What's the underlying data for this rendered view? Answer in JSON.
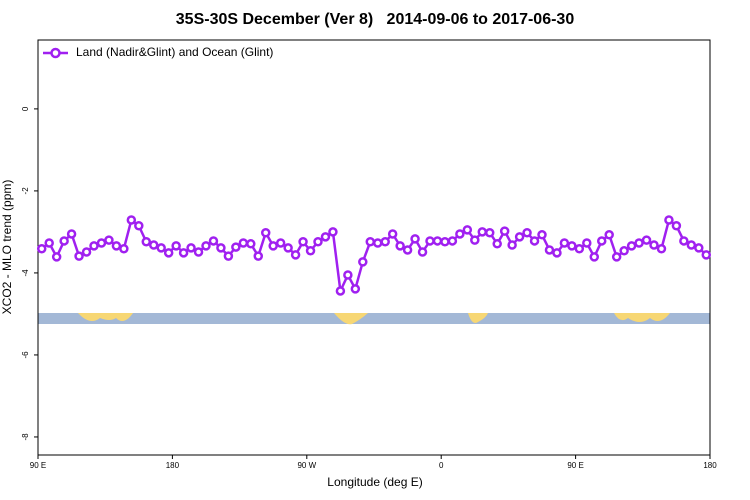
{
  "chart_data": {
    "type": "line",
    "title": "35S-30S December (Ver 8)   2014-09-06 to 2017-06-30",
    "x_label": "Longitude (deg E)",
    "y_label": "XCO2 - MLO trend (ppm)",
    "xlim": [
      90,
      540
    ],
    "ylim": [
      -8.44,
      1.68
    ],
    "xticks": [
      {
        "value": 90,
        "label": "90 E"
      },
      {
        "value": 180,
        "label": "180"
      },
      {
        "value": 270,
        "label": "90 W"
      },
      {
        "value": 360,
        "label": "0"
      },
      {
        "value": 450,
        "label": "90 E"
      },
      {
        "value": 540,
        "label": "180"
      }
    ],
    "yticks": [
      0,
      -2,
      -4,
      -6,
      -8
    ],
    "legend": "top-left",
    "series": [
      {
        "name": "Land (Nadir&Glint) and Ocean (Glint)",
        "color": "#a020f0",
        "x": [
          92.5,
          97.5,
          102.5,
          107.5,
          112.5,
          117.5,
          122.5,
          127.5,
          132.5,
          137.5,
          142.5,
          147.5,
          152.5,
          157.5,
          162.5,
          167.5,
          172.5,
          177.5,
          182.5,
          187.5,
          192.5,
          197.5,
          202.5,
          207.5,
          212.5,
          217.5,
          222.5,
          227.5,
          232.5,
          237.5,
          242.5,
          247.5,
          252.5,
          257.5,
          262.5,
          267.5,
          272.5,
          277.5,
          282.5,
          287.5,
          292.5,
          297.5,
          302.5,
          307.5,
          312.5,
          317.5,
          322.5,
          327.5,
          332.5,
          337.5,
          342.5,
          347.5,
          352.5,
          357.5,
          362.5,
          367.5,
          372.5,
          377.5,
          382.5,
          387.5,
          392.5,
          397.5,
          402.5,
          407.5,
          412.5,
          417.5,
          422.5,
          427.5,
          432.5,
          437.5,
          442.5,
          447.5,
          452.5,
          457.5,
          462.5,
          467.5,
          472.5,
          477.5,
          482.5,
          487.5,
          492.5,
          497.5,
          502.5,
          507.5,
          512.5,
          517.5,
          522.5,
          527.5,
          532.5,
          537.5
        ],
        "values": [
          -3.41,
          -3.27,
          -3.61,
          -3.22,
          -3.05,
          -3.59,
          -3.49,
          -3.34,
          -3.27,
          -3.2,
          -3.34,
          -3.41,
          -2.71,
          -2.85,
          -3.24,
          -3.32,
          -3.39,
          -3.51,
          -3.34,
          -3.51,
          -3.39,
          -3.49,
          -3.34,
          -3.22,
          -3.39,
          -3.59,
          -3.37,
          -3.27,
          -3.29,
          -3.59,
          -3.02,
          -3.34,
          -3.27,
          -3.39,
          -3.56,
          -3.24,
          -3.46,
          -3.24,
          -3.12,
          -3.0,
          -4.44,
          -4.05,
          -4.39,
          -3.73,
          -3.24,
          -3.27,
          -3.24,
          -3.05,
          -3.34,
          -3.44,
          -3.17,
          -3.49,
          -3.22,
          -3.22,
          -3.24,
          -3.22,
          -3.05,
          -2.95,
          -3.2,
          -3.0,
          -3.02,
          -3.29,
          -2.98,
          -3.32,
          -3.12,
          -3.02,
          -3.22,
          -3.07,
          -3.44,
          -3.51,
          -3.27,
          -3.34,
          -3.41,
          -3.27,
          -3.61,
          -3.22,
          -3.07,
          -3.61,
          -3.46,
          -3.34,
          -3.27,
          -3.2,
          -3.32,
          -3.41,
          -2.71,
          -2.85,
          -3.22,
          -3.32,
          -3.39,
          -3.56
        ]
      }
    ]
  }
}
